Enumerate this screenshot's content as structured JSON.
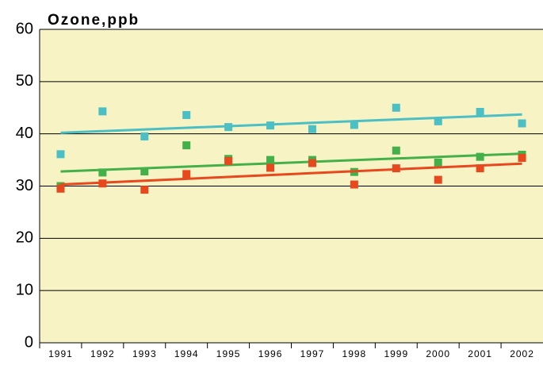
{
  "chart_data": {
    "type": "scatter",
    "title": "Ozone,ppb",
    "categories": [
      "1991",
      "1992",
      "1993",
      "1994",
      "1995",
      "1996",
      "1997",
      "1998",
      "1999",
      "2000",
      "2001",
      "2002"
    ],
    "ylim": [
      0,
      60
    ],
    "yticks": [
      0,
      10,
      20,
      30,
      40,
      50,
      60
    ],
    "grid": true,
    "series": [
      {
        "color": "#4bbfc4",
        "values": [
          36.1,
          44.3,
          39.5,
          43.6,
          41.3,
          41.6,
          40.9,
          41.7,
          45.0,
          42.4,
          44.2,
          42.0
        ],
        "trend": [
          40.2,
          43.7
        ]
      },
      {
        "color": "#44b04a",
        "values": [
          30.0,
          32.6,
          32.8,
          37.8,
          35.2,
          35.0,
          35.0,
          32.7,
          36.8,
          34.5,
          35.6,
          36.0
        ],
        "trend": [
          32.8,
          36.2
        ]
      },
      {
        "color": "#e8481e",
        "values": [
          29.5,
          30.5,
          29.3,
          32.3,
          34.8,
          33.5,
          34.4,
          30.3,
          33.4,
          31.2,
          33.4,
          35.4
        ],
        "trend": [
          30.3,
          34.3
        ]
      }
    ]
  }
}
